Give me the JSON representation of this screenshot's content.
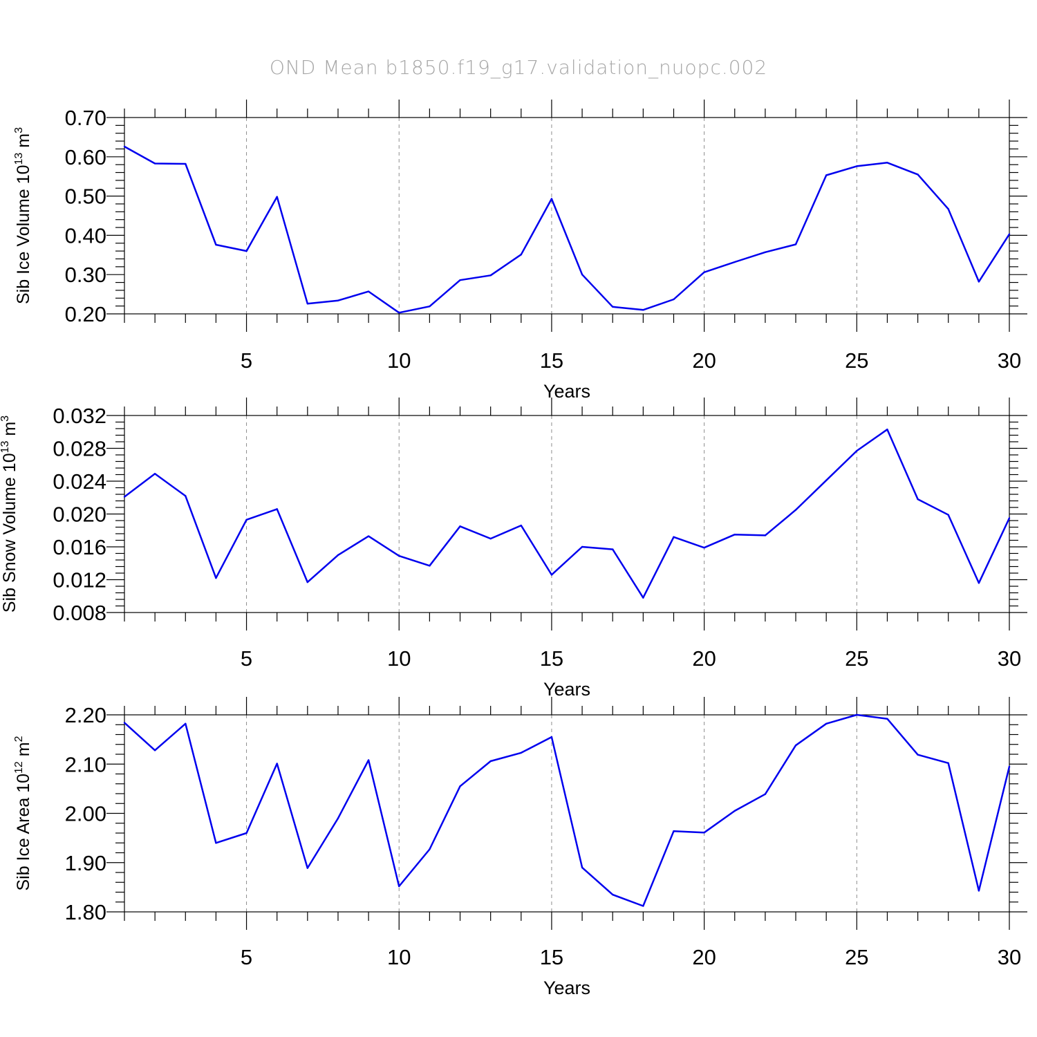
{
  "title": "OND Mean b1850.f19_g17.validation_nuopc.002",
  "colors": {
    "series": "#0000ee",
    "grid": "#8c8c8c",
    "title": "#a6a6a6"
  },
  "chart_data": [
    {
      "type": "line",
      "ylabel_main": "Sib Ice Volume 10",
      "ylabel_exp": "13",
      "ylabel_unit": " m",
      "ylabel_unit_exp": "3",
      "xlabel": "Years",
      "xlim": [
        1,
        30
      ],
      "ylim": [
        0.2,
        0.7
      ],
      "yticks": [
        0.2,
        0.3,
        0.4,
        0.5,
        0.6,
        0.7
      ],
      "ytick_labels": [
        "0.20",
        "0.30",
        "0.40",
        "0.50",
        "0.60",
        "0.70"
      ],
      "xticks": [
        5,
        10,
        15,
        20,
        25,
        30
      ],
      "xtick_labels": [
        "5",
        "10",
        "15",
        "20",
        "25",
        "30"
      ],
      "grid": "vertical-dashed",
      "x": [
        1,
        2,
        3,
        4,
        5,
        6,
        7,
        8,
        9,
        10,
        11,
        12,
        13,
        14,
        15,
        16,
        17,
        18,
        19,
        20,
        21,
        22,
        23,
        24,
        25,
        26,
        27,
        28,
        29,
        30
      ],
      "values": [
        0.626,
        0.583,
        0.582,
        0.376,
        0.36,
        0.498,
        0.226,
        0.234,
        0.257,
        0.203,
        0.219,
        0.286,
        0.298,
        0.351,
        0.493,
        0.3,
        0.218,
        0.21,
        0.237,
        0.306,
        0.332,
        0.357,
        0.377,
        0.553,
        0.576,
        0.585,
        0.555,
        0.467,
        0.282,
        0.403
      ]
    },
    {
      "type": "line",
      "ylabel_main": "Sib Snow Volume 10",
      "ylabel_exp": "13",
      "ylabel_unit": " m",
      "ylabel_unit_exp": "3",
      "xlabel": "Years",
      "xlim": [
        1,
        30
      ],
      "ylim": [
        0.008,
        0.032
      ],
      "yticks": [
        0.008,
        0.012,
        0.016,
        0.02,
        0.024,
        0.028,
        0.032
      ],
      "ytick_labels": [
        "0.008",
        "0.012",
        "0.016",
        "0.020",
        "0.024",
        "0.028",
        "0.032"
      ],
      "xticks": [
        5,
        10,
        15,
        20,
        25,
        30
      ],
      "xtick_labels": [
        "5",
        "10",
        "15",
        "20",
        "25",
        "30"
      ],
      "grid": "vertical-dashed",
      "x": [
        1,
        2,
        3,
        4,
        5,
        6,
        7,
        8,
        9,
        10,
        11,
        12,
        13,
        14,
        15,
        16,
        17,
        18,
        19,
        20,
        21,
        22,
        23,
        24,
        25,
        26,
        27,
        28,
        29,
        30
      ],
      "values": [
        0.0221,
        0.0249,
        0.0222,
        0.0122,
        0.0193,
        0.0206,
        0.0117,
        0.015,
        0.0173,
        0.0149,
        0.0137,
        0.0185,
        0.017,
        0.0186,
        0.0126,
        0.016,
        0.0157,
        0.0098,
        0.0172,
        0.0159,
        0.0175,
        0.0174,
        0.0205,
        0.0241,
        0.0277,
        0.0303,
        0.0218,
        0.0199,
        0.0116,
        0.0195
      ]
    },
    {
      "type": "line",
      "ylabel_main": "Sib Ice Area 10",
      "ylabel_exp": "12",
      "ylabel_unit": " m",
      "ylabel_unit_exp": "2",
      "xlabel": "Years",
      "xlim": [
        1,
        30
      ],
      "ylim": [
        1.8,
        2.2
      ],
      "yticks": [
        1.8,
        1.9,
        2.0,
        2.1,
        2.2
      ],
      "ytick_labels": [
        "1.80",
        "1.90",
        "2.00",
        "2.10",
        "2.20"
      ],
      "xticks": [
        5,
        10,
        15,
        20,
        25,
        30
      ],
      "xtick_labels": [
        "5",
        "10",
        "15",
        "20",
        "25",
        "30"
      ],
      "grid": "vertical-dashed",
      "x": [
        1,
        2,
        3,
        4,
        5,
        6,
        7,
        8,
        9,
        10,
        11,
        12,
        13,
        14,
        15,
        16,
        17,
        18,
        19,
        20,
        21,
        22,
        23,
        24,
        25,
        26,
        27,
        28,
        29,
        30
      ],
      "values": [
        2.184,
        2.128,
        2.182,
        1.94,
        1.96,
        2.101,
        1.889,
        1.99,
        2.108,
        1.852,
        1.927,
        2.055,
        2.106,
        2.123,
        2.155,
        1.89,
        1.835,
        1.812,
        1.964,
        1.961,
        2.005,
        2.039,
        2.138,
        2.182,
        2.2,
        2.192,
        2.119,
        2.102,
        1.843,
        2.095
      ]
    }
  ]
}
